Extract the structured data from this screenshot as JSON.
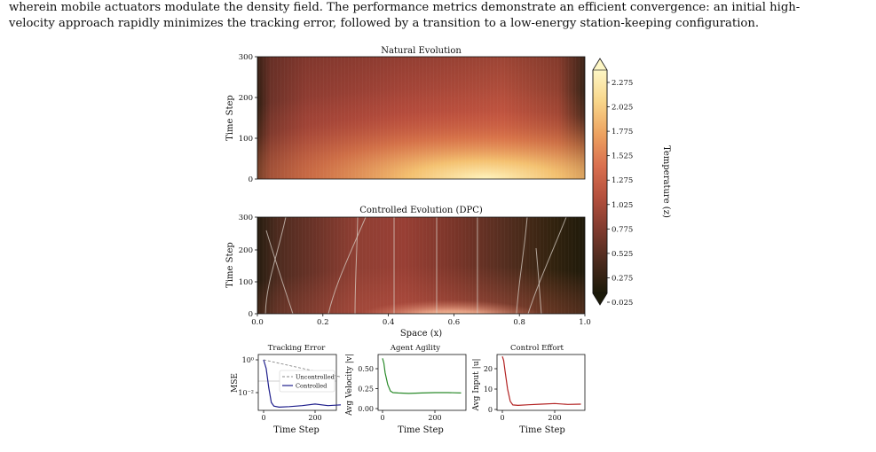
{
  "paragraph": {
    "line1": "wherein mobile actuators modulate the density field. The performance metrics demonstrate an efficient convergence: an initial high-",
    "line2": "velocity approach rapidly minimizes the tracking error, followed by a transition to a low-energy station-keeping configuration."
  },
  "figure": {
    "natural": {
      "title": "Natural Evolution",
      "ylabel": "Time Step",
      "yticks": [
        "0",
        "100",
        "200",
        "300"
      ]
    },
    "controlled": {
      "title": "Controlled Evolution (DPC)",
      "ylabel": "Time Step",
      "yticks": [
        "0",
        "100",
        "200",
        "300"
      ],
      "xlabel": "Space (x)",
      "xticks": [
        "0.0",
        "0.2",
        "0.4",
        "0.6",
        "0.8",
        "1.0"
      ]
    },
    "colorbar": {
      "label": "Temperature (z)",
      "ticks": [
        "2.275",
        "2.025",
        "1.775",
        "1.525",
        "1.275",
        "1.025",
        "0.775",
        "0.525",
        "0.275",
        "0.025"
      ],
      "colors": [
        "#1c1a09",
        "#4a2a1d",
        "#7e3a2e",
        "#b4503d",
        "#d96f4f",
        "#eda15f",
        "#f8d68a",
        "#fdf6c5"
      ]
    },
    "tracking": {
      "title": "Tracking Error",
      "ylabel": "MSE",
      "xlabel": "Time Step",
      "yticks": [
        "10⁰",
        "10⁻²"
      ],
      "xticks": [
        "0",
        "200"
      ],
      "legend": [
        "Uncontrolled",
        "Controlled"
      ],
      "controlled_color": "#1f1f8c",
      "uncontrolled_color": "#8a8a8a"
    },
    "agility": {
      "title": "Agent Agility",
      "ylabel": "Avg Velocity |v|",
      "xlabel": "Time Step",
      "yticks": [
        "0.00",
        "0.25",
        "0.50"
      ],
      "xticks": [
        "0",
        "200"
      ],
      "color": "#2a8a2a"
    },
    "effort": {
      "title": "Control Effort",
      "ylabel": "Avg Input |u|",
      "xlabel": "Time Step",
      "yticks": [
        "0",
        "10",
        "20"
      ],
      "xticks": [
        "0",
        "200"
      ],
      "color": "#b22222"
    }
  },
  "chart_data": [
    {
      "type": "line",
      "title": "Tracking Error",
      "xlabel": "Time Step",
      "ylabel": "MSE",
      "ylog": true,
      "xlim": [
        0,
        300
      ],
      "legend_position": "center-right",
      "series": [
        {
          "name": "Uncontrolled",
          "x": [
            0,
            300
          ],
          "y": [
            1.0,
            0.09
          ]
        },
        {
          "name": "Controlled",
          "x": [
            0,
            10,
            20,
            30,
            40,
            60,
            100,
            150,
            200,
            250,
            300
          ],
          "y": [
            1.0,
            0.3,
            0.02,
            0.0025,
            0.0015,
            0.0013,
            0.0014,
            0.0016,
            0.002,
            0.0016,
            0.0018
          ]
        }
      ]
    },
    {
      "type": "line",
      "title": "Agent Agility",
      "xlabel": "Time Step",
      "ylabel": "Avg Velocity |v|",
      "xlim": [
        0,
        300
      ],
      "ylim": [
        0,
        0.65
      ],
      "series": [
        {
          "x": [
            0,
            5,
            10,
            20,
            30,
            40,
            60,
            100,
            150,
            200,
            250,
            300
          ],
          "y": [
            0.63,
            0.57,
            0.45,
            0.3,
            0.22,
            0.2,
            0.195,
            0.19,
            0.195,
            0.2,
            0.2,
            0.195
          ]
        }
      ]
    },
    {
      "type": "line",
      "title": "Control Effort",
      "xlabel": "Time Step",
      "ylabel": "Avg Input |u|",
      "xlim": [
        0,
        300
      ],
      "ylim": [
        0,
        27
      ],
      "series": [
        {
          "x": [
            0,
            5,
            10,
            20,
            30,
            40,
            60,
            100,
            150,
            200,
            250,
            300
          ],
          "y": [
            26,
            24,
            19,
            10,
            4,
            2.2,
            2.0,
            2.3,
            2.6,
            2.9,
            2.5,
            2.6
          ]
        }
      ]
    }
  ]
}
